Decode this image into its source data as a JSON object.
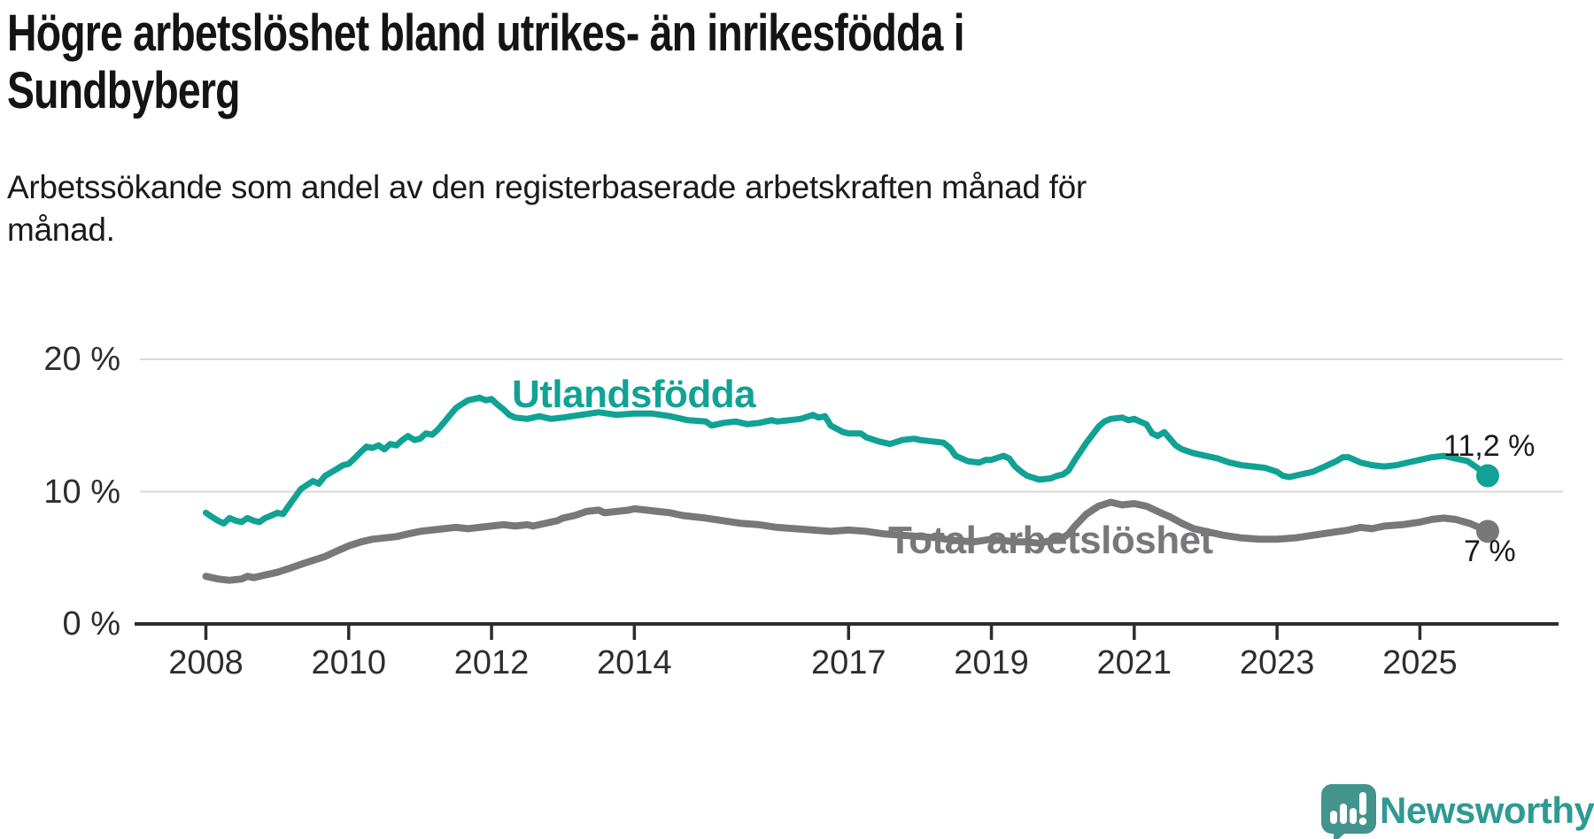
{
  "title_lines": [
    "Högre arbetslöshet bland utrikes- än inrikesfödda i",
    "Sundbyberg"
  ],
  "subtitle_lines": [
    "Arbetssökande som andel av den registerbaserade arbetskraften månad för",
    "månad."
  ],
  "branding": {
    "logo_text": "Newsworthy",
    "logo_icon": "speech-bubble-bar-chart-exclamation"
  },
  "colors": {
    "teal_line": "#10A294",
    "gray_line": "#78787B",
    "grid": "#D9D9D9",
    "axis": "#2D2D2D",
    "text": "#1A1A1A",
    "logo_bubble": "#44948E",
    "logo_text": "#2E9A93"
  },
  "chart_data": {
    "type": "line",
    "unit": "%",
    "title": "Högre arbetslöshet bland utrikes- än inrikesfödda i Sundbyberg",
    "subtitle": "Arbetssökande som andel av den registerbaserade arbetskraften månad för månad.",
    "xlim": [
      2007.85,
      2026.0
    ],
    "ylim": [
      0,
      21.5
    ],
    "grid": "horizontal-only",
    "x_ticks": [
      2008,
      2010,
      2012,
      2014,
      2017,
      2019,
      2021,
      2023,
      2025
    ],
    "y_ticks": [
      {
        "value": 0,
        "label": "0 %"
      },
      {
        "value": 10,
        "label": "10 %"
      },
      {
        "value": 20,
        "label": "20 %"
      }
    ],
    "series": [
      {
        "name": "Utlandsfödda",
        "color": "#10A294",
        "end_label": "11,2 %",
        "end_value": 11.2,
        "points": [
          [
            2008.0,
            8.4
          ],
          [
            2008.08,
            8.1
          ],
          [
            2008.17,
            7.8
          ],
          [
            2008.25,
            7.6
          ],
          [
            2008.33,
            8.0
          ],
          [
            2008.42,
            7.8
          ],
          [
            2008.5,
            7.7
          ],
          [
            2008.58,
            8.0
          ],
          [
            2008.67,
            7.8
          ],
          [
            2008.75,
            7.7
          ],
          [
            2008.83,
            8.0
          ],
          [
            2008.92,
            8.2
          ],
          [
            2009.0,
            8.4
          ],
          [
            2009.08,
            8.3
          ],
          [
            2009.17,
            9.0
          ],
          [
            2009.25,
            9.6
          ],
          [
            2009.33,
            10.2
          ],
          [
            2009.5,
            10.8
          ],
          [
            2009.58,
            10.6
          ],
          [
            2009.67,
            11.2
          ],
          [
            2009.83,
            11.7
          ],
          [
            2009.92,
            12.0
          ],
          [
            2010.0,
            12.1
          ],
          [
            2010.08,
            12.5
          ],
          [
            2010.17,
            13.0
          ],
          [
            2010.25,
            13.4
          ],
          [
            2010.33,
            13.3
          ],
          [
            2010.42,
            13.5
          ],
          [
            2010.5,
            13.2
          ],
          [
            2010.58,
            13.6
          ],
          [
            2010.67,
            13.5
          ],
          [
            2010.75,
            13.9
          ],
          [
            2010.83,
            14.2
          ],
          [
            2010.92,
            13.9
          ],
          [
            2011.0,
            14.0
          ],
          [
            2011.08,
            14.4
          ],
          [
            2011.17,
            14.3
          ],
          [
            2011.25,
            14.7
          ],
          [
            2011.33,
            15.2
          ],
          [
            2011.42,
            15.8
          ],
          [
            2011.5,
            16.3
          ],
          [
            2011.58,
            16.6
          ],
          [
            2011.67,
            16.9
          ],
          [
            2011.75,
            17.0
          ],
          [
            2011.83,
            17.1
          ],
          [
            2011.92,
            16.9
          ],
          [
            2012.0,
            17.0
          ],
          [
            2012.08,
            16.6
          ],
          [
            2012.17,
            16.2
          ],
          [
            2012.25,
            15.8
          ],
          [
            2012.33,
            15.6
          ],
          [
            2012.5,
            15.5
          ],
          [
            2012.67,
            15.7
          ],
          [
            2012.83,
            15.5
          ],
          [
            2013.0,
            15.6
          ],
          [
            2013.25,
            15.8
          ],
          [
            2013.5,
            16.0
          ],
          [
            2013.75,
            15.8
          ],
          [
            2014.0,
            15.9
          ],
          [
            2014.25,
            15.9
          ],
          [
            2014.5,
            15.7
          ],
          [
            2014.75,
            15.4
          ],
          [
            2015.0,
            15.3
          ],
          [
            2015.08,
            15.0
          ],
          [
            2015.25,
            15.2
          ],
          [
            2015.42,
            15.3
          ],
          [
            2015.58,
            15.1
          ],
          [
            2015.75,
            15.2
          ],
          [
            2015.92,
            15.4
          ],
          [
            2016.0,
            15.3
          ],
          [
            2016.17,
            15.4
          ],
          [
            2016.33,
            15.5
          ],
          [
            2016.5,
            15.8
          ],
          [
            2016.58,
            15.6
          ],
          [
            2016.67,
            15.7
          ],
          [
            2016.75,
            15.0
          ],
          [
            2016.92,
            14.5
          ],
          [
            2017.0,
            14.4
          ],
          [
            2017.17,
            14.4
          ],
          [
            2017.25,
            14.1
          ],
          [
            2017.42,
            13.8
          ],
          [
            2017.58,
            13.6
          ],
          [
            2017.75,
            13.9
          ],
          [
            2017.92,
            14.0
          ],
          [
            2018.0,
            13.9
          ],
          [
            2018.17,
            13.8
          ],
          [
            2018.33,
            13.7
          ],
          [
            2018.42,
            13.3
          ],
          [
            2018.5,
            12.7
          ],
          [
            2018.67,
            12.3
          ],
          [
            2018.83,
            12.2
          ],
          [
            2018.92,
            12.4
          ],
          [
            2019.0,
            12.4
          ],
          [
            2019.17,
            12.7
          ],
          [
            2019.25,
            12.5
          ],
          [
            2019.33,
            11.9
          ],
          [
            2019.42,
            11.5
          ],
          [
            2019.5,
            11.2
          ],
          [
            2019.67,
            10.9
          ],
          [
            2019.83,
            11.0
          ],
          [
            2019.92,
            11.2
          ],
          [
            2020.0,
            11.3
          ],
          [
            2020.08,
            11.6
          ],
          [
            2020.17,
            12.4
          ],
          [
            2020.33,
            13.7
          ],
          [
            2020.5,
            14.9
          ],
          [
            2020.58,
            15.3
          ],
          [
            2020.67,
            15.5
          ],
          [
            2020.83,
            15.6
          ],
          [
            2020.92,
            15.4
          ],
          [
            2021.0,
            15.5
          ],
          [
            2021.08,
            15.3
          ],
          [
            2021.17,
            15.1
          ],
          [
            2021.25,
            14.4
          ],
          [
            2021.33,
            14.2
          ],
          [
            2021.42,
            14.5
          ],
          [
            2021.5,
            14.0
          ],
          [
            2021.58,
            13.5
          ],
          [
            2021.67,
            13.2
          ],
          [
            2021.83,
            12.9
          ],
          [
            2022.0,
            12.7
          ],
          [
            2022.17,
            12.5
          ],
          [
            2022.33,
            12.2
          ],
          [
            2022.5,
            12.0
          ],
          [
            2022.67,
            11.9
          ],
          [
            2022.83,
            11.8
          ],
          [
            2023.0,
            11.5
          ],
          [
            2023.08,
            11.2
          ],
          [
            2023.17,
            11.1
          ],
          [
            2023.33,
            11.3
          ],
          [
            2023.5,
            11.5
          ],
          [
            2023.67,
            11.9
          ],
          [
            2023.83,
            12.3
          ],
          [
            2023.92,
            12.6
          ],
          [
            2024.0,
            12.6
          ],
          [
            2024.17,
            12.2
          ],
          [
            2024.33,
            12.0
          ],
          [
            2024.5,
            11.9
          ],
          [
            2024.67,
            12.0
          ],
          [
            2024.83,
            12.2
          ],
          [
            2025.0,
            12.4
          ],
          [
            2025.17,
            12.6
          ],
          [
            2025.33,
            12.7
          ],
          [
            2025.5,
            12.5
          ],
          [
            2025.67,
            12.3
          ],
          [
            2025.83,
            11.7
          ],
          [
            2025.95,
            11.2
          ]
        ]
      },
      {
        "name": "Total arbetslöshet",
        "color": "#78787B",
        "end_label": "7 %",
        "end_value": 7.0,
        "points": [
          [
            2008.0,
            3.6
          ],
          [
            2008.17,
            3.4
          ],
          [
            2008.33,
            3.3
          ],
          [
            2008.5,
            3.4
          ],
          [
            2008.58,
            3.6
          ],
          [
            2008.67,
            3.5
          ],
          [
            2008.83,
            3.7
          ],
          [
            2009.0,
            3.9
          ],
          [
            2009.17,
            4.2
          ],
          [
            2009.33,
            4.5
          ],
          [
            2009.5,
            4.8
          ],
          [
            2009.67,
            5.1
          ],
          [
            2009.83,
            5.5
          ],
          [
            2010.0,
            5.9
          ],
          [
            2010.17,
            6.2
          ],
          [
            2010.33,
            6.4
          ],
          [
            2010.5,
            6.5
          ],
          [
            2010.67,
            6.6
          ],
          [
            2010.83,
            6.8
          ],
          [
            2011.0,
            7.0
          ],
          [
            2011.17,
            7.1
          ],
          [
            2011.33,
            7.2
          ],
          [
            2011.5,
            7.3
          ],
          [
            2011.67,
            7.2
          ],
          [
            2011.83,
            7.3
          ],
          [
            2012.0,
            7.4
          ],
          [
            2012.17,
            7.5
          ],
          [
            2012.33,
            7.4
          ],
          [
            2012.5,
            7.5
          ],
          [
            2012.58,
            7.4
          ],
          [
            2012.75,
            7.6
          ],
          [
            2012.92,
            7.8
          ],
          [
            2013.0,
            8.0
          ],
          [
            2013.17,
            8.2
          ],
          [
            2013.33,
            8.5
          ],
          [
            2013.5,
            8.6
          ],
          [
            2013.58,
            8.4
          ],
          [
            2013.75,
            8.5
          ],
          [
            2013.92,
            8.6
          ],
          [
            2014.0,
            8.7
          ],
          [
            2014.17,
            8.6
          ],
          [
            2014.33,
            8.5
          ],
          [
            2014.5,
            8.4
          ],
          [
            2014.67,
            8.2
          ],
          [
            2014.83,
            8.1
          ],
          [
            2015.0,
            8.0
          ],
          [
            2015.25,
            7.8
          ],
          [
            2015.5,
            7.6
          ],
          [
            2015.75,
            7.5
          ],
          [
            2016.0,
            7.3
          ],
          [
            2016.25,
            7.2
          ],
          [
            2016.5,
            7.1
          ],
          [
            2016.75,
            7.0
          ],
          [
            2017.0,
            7.1
          ],
          [
            2017.25,
            7.0
          ],
          [
            2017.5,
            6.8
          ],
          [
            2017.75,
            6.7
          ],
          [
            2018.0,
            6.6
          ],
          [
            2018.25,
            6.5
          ],
          [
            2018.5,
            6.3
          ],
          [
            2018.75,
            6.2
          ],
          [
            2019.0,
            6.4
          ],
          [
            2019.17,
            6.3
          ],
          [
            2019.33,
            6.2
          ],
          [
            2019.5,
            6.2
          ],
          [
            2019.67,
            6.1
          ],
          [
            2019.83,
            6.3
          ],
          [
            2020.0,
            6.5
          ],
          [
            2020.08,
            6.8
          ],
          [
            2020.17,
            7.4
          ],
          [
            2020.33,
            8.3
          ],
          [
            2020.5,
            8.9
          ],
          [
            2020.67,
            9.2
          ],
          [
            2020.83,
            9.0
          ],
          [
            2021.0,
            9.1
          ],
          [
            2021.17,
            8.9
          ],
          [
            2021.33,
            8.5
          ],
          [
            2021.5,
            8.1
          ],
          [
            2021.67,
            7.6
          ],
          [
            2021.83,
            7.2
          ],
          [
            2022.0,
            7.0
          ],
          [
            2022.25,
            6.7
          ],
          [
            2022.5,
            6.5
          ],
          [
            2022.75,
            6.4
          ],
          [
            2023.0,
            6.4
          ],
          [
            2023.25,
            6.5
          ],
          [
            2023.5,
            6.7
          ],
          [
            2023.75,
            6.9
          ],
          [
            2024.0,
            7.1
          ],
          [
            2024.17,
            7.3
          ],
          [
            2024.33,
            7.2
          ],
          [
            2024.5,
            7.4
          ],
          [
            2024.75,
            7.5
          ],
          [
            2025.0,
            7.7
          ],
          [
            2025.17,
            7.9
          ],
          [
            2025.33,
            8.0
          ],
          [
            2025.5,
            7.9
          ],
          [
            2025.7,
            7.6
          ],
          [
            2025.95,
            7.0
          ]
        ]
      }
    ]
  }
}
